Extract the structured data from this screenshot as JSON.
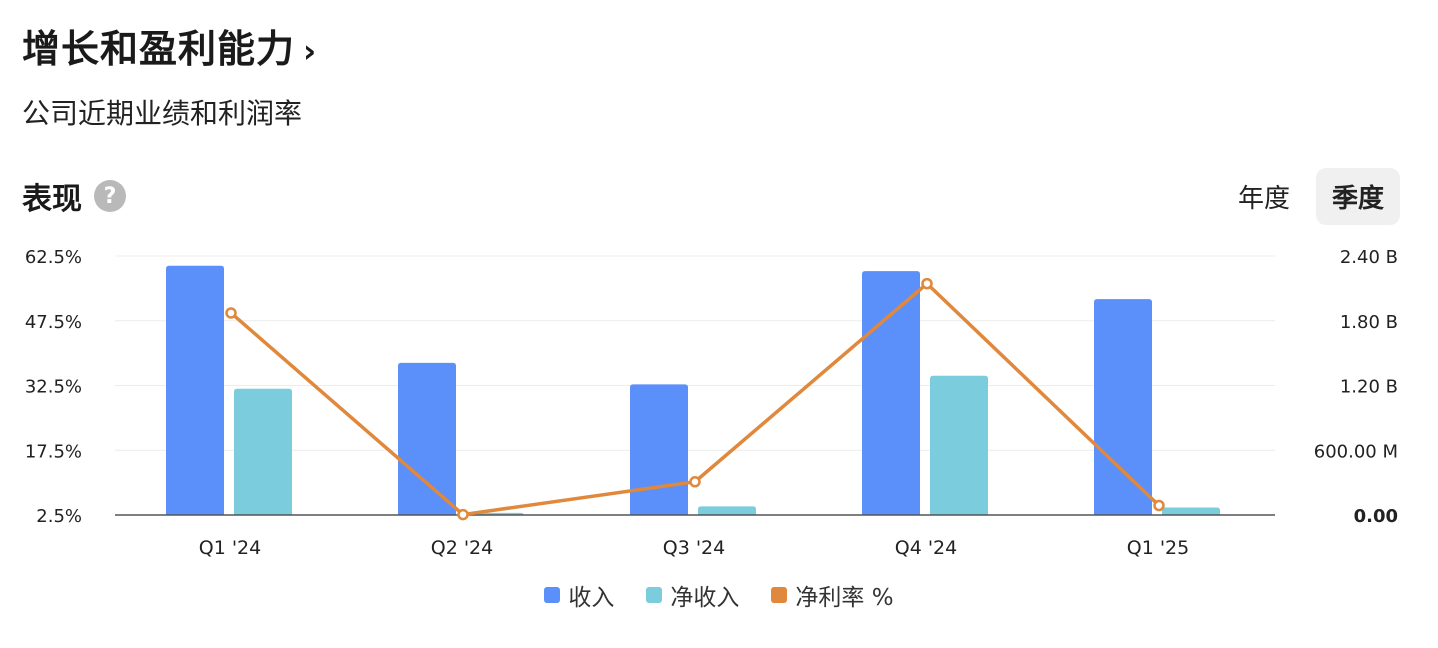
{
  "header": {
    "title": "增长和盈利能力",
    "chevron": "›",
    "subtitle": "公司近期业绩和利润率"
  },
  "section": {
    "title": "表现",
    "help_icon": "?"
  },
  "period_toggle": {
    "annual_label": "年度",
    "quarterly_label": "季度",
    "active": "quarterly"
  },
  "colors": {
    "revenue": "#5b8ff9",
    "net_income": "#7bccdc",
    "net_margin": "#e0883c"
  },
  "chart_data": {
    "type": "bar",
    "categories": [
      "Q1 '24",
      "Q2 '24",
      "Q3 '24",
      "Q4 '24",
      "Q1 '25"
    ],
    "series": [
      {
        "name": "收入",
        "type": "bar",
        "axis": "right",
        "values": [
          2.31,
          1.41,
          1.21,
          2.26,
          2.0
        ]
      },
      {
        "name": "净收入",
        "type": "bar",
        "axis": "right",
        "values": [
          1.17,
          0.02,
          0.08,
          1.29,
          0.07
        ]
      },
      {
        "name": "净利率 %",
        "type": "line",
        "axis": "left",
        "values": [
          49.3,
          2.6,
          10.2,
          56.1,
          4.7
        ]
      }
    ],
    "left_axis": {
      "ticks": [
        "62.5%",
        "47.5%",
        "32.5%",
        "17.5%",
        "2.5%"
      ],
      "range": [
        2.5,
        62.5
      ]
    },
    "right_axis": {
      "ticks": [
        "2.40 B",
        "1.80 B",
        "1.20 B",
        "600.00 M",
        "0.00"
      ],
      "range": [
        0,
        2.4
      ],
      "unit": "B"
    },
    "grid": true,
    "legend_position": "bottom"
  }
}
